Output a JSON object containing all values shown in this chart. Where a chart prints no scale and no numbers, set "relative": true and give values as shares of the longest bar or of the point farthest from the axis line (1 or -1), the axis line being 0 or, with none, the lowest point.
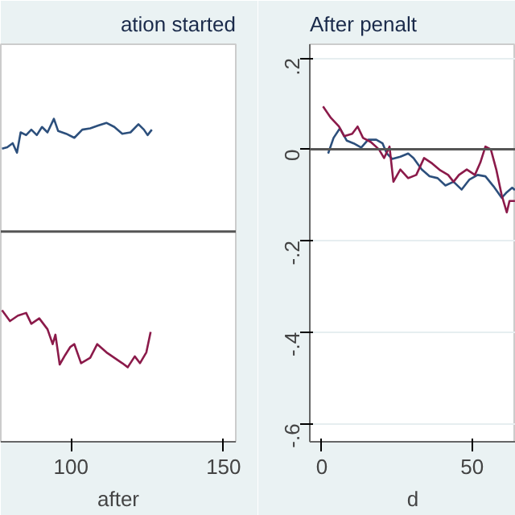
{
  "chart_data": [
    {
      "type": "line",
      "title": "ation started",
      "xlabel": "after",
      "relative": true,
      "xlim": [
        77,
        154
      ],
      "xticks": [
        100,
        150
      ],
      "grid": false,
      "ref_lines": [
        {
          "axis": "y",
          "value": 0,
          "color": "#555555"
        }
      ],
      "series": [
        {
          "color": "#2c4f7c",
          "x": [
            77.4,
            79.1,
            80.9,
            82.3,
            83.5,
            85.3,
            87.0,
            88.8,
            90.5,
            92.3,
            94.4,
            95.8,
            98.4,
            101.1,
            103.7,
            106.3,
            108.9,
            111.6,
            114.2,
            116.8,
            119.5,
            122.1,
            123.9,
            125.1,
            126.5
          ],
          "values": [
            0.61,
            0.62,
            0.65,
            0.58,
            0.73,
            0.71,
            0.75,
            0.71,
            0.77,
            0.73,
            0.83,
            0.74,
            0.72,
            0.69,
            0.75,
            0.76,
            0.78,
            0.8,
            0.77,
            0.72,
            0.73,
            0.79,
            0.75,
            0.71,
            0.75
          ]
        },
        {
          "color": "#8b1a4a",
          "x": [
            77.4,
            80.0,
            82.6,
            85.3,
            87.0,
            89.6,
            92.3,
            94.0,
            94.9,
            96.3,
            98.1,
            99.8,
            101.1,
            103.3,
            106.3,
            108.6,
            111.6,
            114.2,
            116.8,
            118.6,
            120.9,
            122.6,
            124.7,
            126.1
          ],
          "values": [
            -0.58,
            -0.66,
            -0.62,
            -0.6,
            -0.68,
            -0.64,
            -0.72,
            -0.83,
            -0.76,
            -0.98,
            -0.91,
            -0.85,
            -0.83,
            -0.97,
            -0.93,
            -0.83,
            -0.89,
            -0.93,
            -0.97,
            -1,
            -0.92,
            -0.97,
            -0.89,
            -0.74
          ]
        }
      ]
    },
    {
      "type": "line",
      "title": "After penalt",
      "xlabel": "d",
      "xlim": [
        -4,
        64.5
      ],
      "xticks": [
        0,
        50
      ],
      "ylim": [
        -0.64,
        0.23
      ],
      "yticks": [
        {
          "value": 0.2,
          "label": ".2"
        },
        0,
        {
          "value": -0.2,
          "label": "-.2"
        },
        {
          "value": -0.4,
          "label": "-.4"
        },
        {
          "value": -0.6,
          "label": "-.6"
        }
      ],
      "grid": "y",
      "ref_lines": [
        {
          "axis": "y",
          "value": 0,
          "color": "#555555"
        }
      ],
      "series": [
        {
          "color": "#2c4f7c",
          "x": [
            2.1,
            3.9,
            6.0,
            8.3,
            10.6,
            13.1,
            15.4,
            18.1,
            20.2,
            21.6,
            23.4,
            26.1,
            28.7,
            30.5,
            33.2,
            35.8,
            38.5,
            41.1,
            43.8,
            46.5,
            49.1,
            51.8,
            54.4,
            57.1,
            59.8,
            61.5,
            63.3,
            64.2
          ],
          "values": [
            -0.009,
            0.025,
            0.046,
            0.019,
            0.013,
            0.004,
            0.021,
            0.021,
            0.013,
            -0.009,
            -0.021,
            -0.016,
            -0.009,
            -0.019,
            -0.044,
            -0.059,
            -0.063,
            -0.079,
            -0.071,
            -0.088,
            -0.066,
            -0.056,
            -0.059,
            -0.081,
            -0.106,
            -0.094,
            -0.084,
            -0.089
          ]
        },
        {
          "color": "#8b1a4a",
          "x": [
            0.4,
            3.0,
            5.7,
            7.4,
            10.1,
            11.9,
            13.7,
            16.3,
            19.0,
            20.7,
            22.5,
            23.8,
            26.1,
            28.7,
            31.4,
            34.0,
            36.7,
            39.4,
            42.0,
            43.8,
            45.6,
            48.2,
            50.9,
            52.7,
            54.4,
            56.2,
            58.0,
            59.8,
            61.5,
            62.4,
            64.2
          ],
          "values": [
            0.094,
            0.069,
            0.05,
            0.029,
            0.034,
            0.05,
            0.025,
            0.016,
            0,
            -0.019,
            0.006,
            -0.071,
            -0.044,
            -0.063,
            -0.056,
            -0.019,
            -0.031,
            -0.046,
            -0.056,
            -0.071,
            -0.056,
            -0.044,
            -0.056,
            -0.029,
            0.006,
            0,
            -0.044,
            -0.1,
            -0.138,
            -0.113,
            -0.113
          ]
        }
      ]
    }
  ]
}
